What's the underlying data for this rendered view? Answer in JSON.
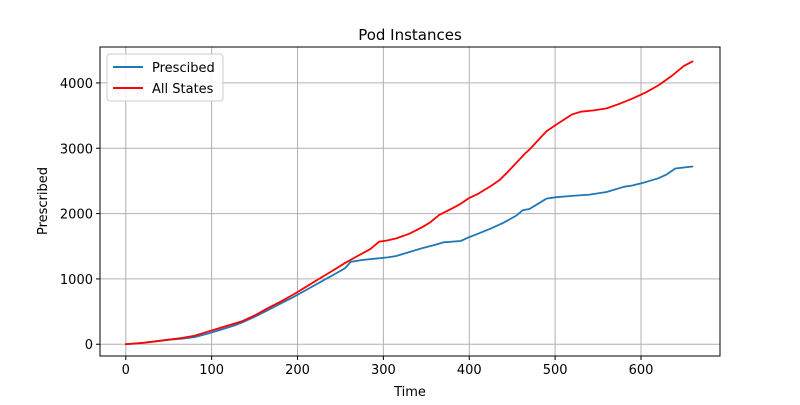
{
  "chart_data": {
    "type": "line",
    "title": "Pod Instances",
    "xlabel": "Time",
    "ylabel": "Prescribed",
    "xlim": [
      -30,
      692
    ],
    "ylim": [
      -180,
      4550
    ],
    "xticks": [
      0,
      100,
      200,
      300,
      400,
      500,
      600
    ],
    "yticks": [
      0,
      1000,
      2000,
      3000,
      4000
    ],
    "grid": true,
    "legend_position": "top-left",
    "series": [
      {
        "name": "Prescibed",
        "color": "#1f77b4",
        "points": [
          [
            0,
            0
          ],
          [
            20,
            20
          ],
          [
            35,
            45
          ],
          [
            50,
            70
          ],
          [
            65,
            85
          ],
          [
            80,
            110
          ],
          [
            95,
            160
          ],
          [
            110,
            220
          ],
          [
            125,
            280
          ],
          [
            135,
            330
          ],
          [
            150,
            420
          ],
          [
            165,
            520
          ],
          [
            180,
            620
          ],
          [
            195,
            720
          ],
          [
            210,
            830
          ],
          [
            225,
            940
          ],
          [
            240,
            1050
          ],
          [
            255,
            1160
          ],
          [
            262,
            1260
          ],
          [
            275,
            1290
          ],
          [
            290,
            1310
          ],
          [
            305,
            1330
          ],
          [
            315,
            1350
          ],
          [
            330,
            1410
          ],
          [
            345,
            1470
          ],
          [
            360,
            1520
          ],
          [
            365,
            1540
          ],
          [
            370,
            1560
          ],
          [
            390,
            1580
          ],
          [
            400,
            1640
          ],
          [
            410,
            1690
          ],
          [
            425,
            1770
          ],
          [
            440,
            1860
          ],
          [
            455,
            1970
          ],
          [
            462,
            2050
          ],
          [
            470,
            2070
          ],
          [
            480,
            2150
          ],
          [
            490,
            2230
          ],
          [
            500,
            2250
          ],
          [
            520,
            2270
          ],
          [
            540,
            2290
          ],
          [
            560,
            2330
          ],
          [
            580,
            2410
          ],
          [
            590,
            2430
          ],
          [
            605,
            2480
          ],
          [
            620,
            2540
          ],
          [
            630,
            2600
          ],
          [
            640,
            2690
          ],
          [
            660,
            2720
          ]
        ]
      },
      {
        "name": "All States",
        "color": "#ff0000",
        "points": [
          [
            0,
            0
          ],
          [
            20,
            20
          ],
          [
            35,
            45
          ],
          [
            50,
            70
          ],
          [
            65,
            95
          ],
          [
            80,
            130
          ],
          [
            95,
            190
          ],
          [
            110,
            250
          ],
          [
            125,
            310
          ],
          [
            135,
            350
          ],
          [
            150,
            440
          ],
          [
            165,
            550
          ],
          [
            180,
            650
          ],
          [
            195,
            760
          ],
          [
            210,
            880
          ],
          [
            225,
            1000
          ],
          [
            240,
            1120
          ],
          [
            255,
            1240
          ],
          [
            270,
            1350
          ],
          [
            285,
            1460
          ],
          [
            295,
            1570
          ],
          [
            305,
            1590
          ],
          [
            315,
            1620
          ],
          [
            330,
            1690
          ],
          [
            345,
            1790
          ],
          [
            355,
            1870
          ],
          [
            365,
            1980
          ],
          [
            380,
            2080
          ],
          [
            390,
            2150
          ],
          [
            400,
            2240
          ],
          [
            410,
            2300
          ],
          [
            425,
            2420
          ],
          [
            435,
            2510
          ],
          [
            445,
            2640
          ],
          [
            455,
            2780
          ],
          [
            465,
            2920
          ],
          [
            470,
            2980
          ],
          [
            480,
            3120
          ],
          [
            490,
            3260
          ],
          [
            500,
            3350
          ],
          [
            520,
            3520
          ],
          [
            530,
            3560
          ],
          [
            545,
            3580
          ],
          [
            560,
            3610
          ],
          [
            575,
            3680
          ],
          [
            590,
            3760
          ],
          [
            605,
            3850
          ],
          [
            620,
            3960
          ],
          [
            635,
            4100
          ],
          [
            650,
            4260
          ],
          [
            660,
            4330
          ]
        ]
      }
    ]
  }
}
